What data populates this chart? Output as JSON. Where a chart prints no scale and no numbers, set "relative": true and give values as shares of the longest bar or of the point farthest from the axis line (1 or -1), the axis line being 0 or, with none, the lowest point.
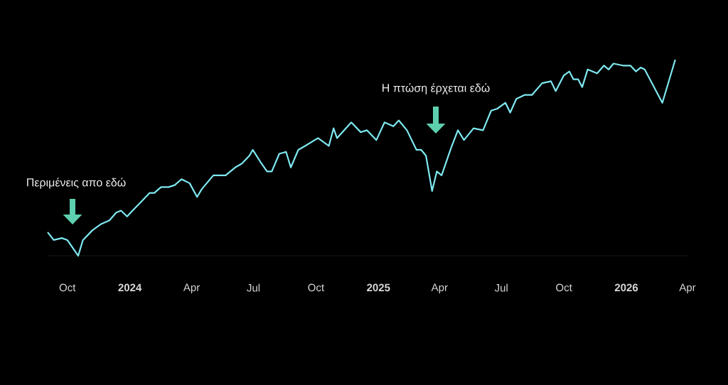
{
  "chart_data": {
    "type": "line",
    "relative": true,
    "color": "#7ee8f0",
    "x": [
      "2023-09-02",
      "2023-09-11",
      "2023-09-23",
      "2023-10-01",
      "2023-10-17",
      "2023-10-24",
      "2023-11-07",
      "2023-11-19",
      "2023-12-02",
      "2023-12-12",
      "2023-12-19",
      "2023-12-28",
      "2024-01-05",
      "2024-01-19",
      "2024-01-30",
      "2024-02-06",
      "2024-02-16",
      "2024-02-27",
      "2024-03-07",
      "2024-03-17",
      "2024-03-29",
      "2024-04-09",
      "2024-04-16",
      "2024-05-03",
      "2024-05-21",
      "2024-06-04",
      "2024-06-14",
      "2024-06-25",
      "2024-06-30",
      "2024-07-11",
      "2024-07-21",
      "2024-07-28",
      "2024-08-08",
      "2024-08-18",
      "2024-08-25",
      "2024-09-05",
      "2024-09-15",
      "2024-10-04",
      "2024-10-20",
      "2024-10-27",
      "2024-11-01",
      "2024-11-22",
      "2024-12-06",
      "2024-12-15",
      "2024-12-29",
      "2025-01-10",
      "2025-01-23",
      "2025-01-31",
      "2025-02-12",
      "2025-02-26",
      "2025-03-05",
      "2025-03-12",
      "2025-03-21",
      "2025-03-28",
      "2025-04-04",
      "2025-04-18",
      "2025-04-28",
      "2025-05-07",
      "2025-05-21",
      "2025-06-04",
      "2025-06-16",
      "2025-06-25",
      "2025-07-07",
      "2025-07-14",
      "2025-07-23",
      "2025-08-04",
      "2025-08-15",
      "2025-08-30",
      "2025-09-12",
      "2025-09-19",
      "2025-10-01",
      "2025-10-09",
      "2025-10-15",
      "2025-10-22",
      "2025-10-28",
      "2025-11-05",
      "2025-11-19",
      "2025-11-29",
      "2025-12-06",
      "2025-12-13",
      "2025-12-27",
      "2026-01-07",
      "2026-01-15",
      "2026-01-22",
      "2026-01-28",
      "2026-02-23",
      "2026-03-14"
    ],
    "values": [
      0.12,
      0.08,
      0.09,
      0.08,
      0,
      0.08,
      0.13,
      0.16,
      0.18,
      0.22,
      0.23,
      0.2,
      0.23,
      0.28,
      0.32,
      0.32,
      0.35,
      0.35,
      0.36,
      0.39,
      0.37,
      0.3,
      0.34,
      0.41,
      0.41,
      0.45,
      0.47,
      0.51,
      0.54,
      0.48,
      0.43,
      0.43,
      0.52,
      0.53,
      0.45,
      0.54,
      0.56,
      0.6,
      0.56,
      0.65,
      0.6,
      0.68,
      0.63,
      0.64,
      0.59,
      0.68,
      0.66,
      0.69,
      0.64,
      0.54,
      0.54,
      0.51,
      0.33,
      0.43,
      0.41,
      0.55,
      0.64,
      0.59,
      0.65,
      0.64,
      0.74,
      0.75,
      0.78,
      0.73,
      0.8,
      0.82,
      0.82,
      0.88,
      0.89,
      0.84,
      0.92,
      0.94,
      0.9,
      0.9,
      0.86,
      0.95,
      0.93,
      0.97,
      0.95,
      0.98,
      0.97,
      0.97,
      0.94,
      0.96,
      0.95,
      0.78,
      1
    ],
    "xlim": [
      "2023-09-02",
      "2026-04-01"
    ],
    "xticks": [
      {
        "value": "2023-10-01",
        "label": "Oct"
      },
      {
        "value": "2024-01-01",
        "label": "2024"
      },
      {
        "value": "2024-04-01",
        "label": "Apr"
      },
      {
        "value": "2024-07-01",
        "label": "Jul"
      },
      {
        "value": "2024-10-01",
        "label": "Oct"
      },
      {
        "value": "2025-01-01",
        "label": "2025"
      },
      {
        "value": "2025-04-01",
        "label": "Apr"
      },
      {
        "value": "2025-07-01",
        "label": "Jul"
      },
      {
        "value": "2025-10-01",
        "label": "Oct"
      },
      {
        "value": "2026-01-01",
        "label": "2026"
      },
      {
        "value": "2026-04-01",
        "label": "Apr"
      }
    ],
    "annotations": [
      "Περιμένεις απο εδώ",
      "Η πτώση έρχεται εδώ"
    ]
  }
}
